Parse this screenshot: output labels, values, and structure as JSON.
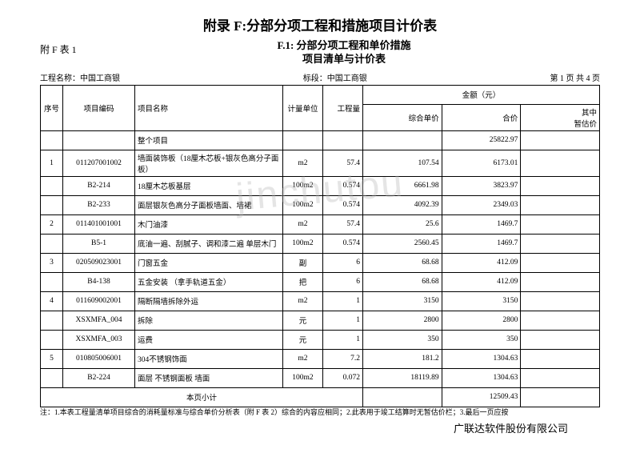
{
  "main_title": "附录 F:分部分项工程和措施项目计价表",
  "table_id": "附 F 表 1",
  "sub_title_line1": "F.1: 分部分项工程和单价措施",
  "sub_title_line2": "项目清单与计价表",
  "meta": {
    "project_label": "工程名称：中国工商银",
    "section_label": "标段：中国工商银",
    "page_label": "第  1 页 共  4 页"
  },
  "headers": {
    "seq": "序号",
    "code": "项目编码",
    "name": "项目名称",
    "unit": "计量单位",
    "qty": "工程量",
    "amount_group": "金额（元）",
    "unit_price": "综合单价",
    "total": "合价",
    "temp": "其中\n暂估价"
  },
  "rows": [
    {
      "seq": "",
      "code": "",
      "name": "整个项目",
      "unit": "",
      "qty": "",
      "price": "",
      "total": "25822.97",
      "temp": ""
    },
    {
      "seq": "1",
      "code": "011207001002",
      "name": "墙面装饰板（18厘木芯板+银灰色高分子面板）",
      "unit": "m2",
      "qty": "57.4",
      "price": "107.54",
      "total": "6173.01",
      "temp": ""
    },
    {
      "seq": "",
      "code": "B2-214",
      "name": "18厘木芯板基层",
      "unit": "100m2",
      "qty": "0.574",
      "price": "6661.98",
      "total": "3823.97",
      "temp": ""
    },
    {
      "seq": "",
      "code": "B2-233",
      "name": "面层银灰色高分子面板墙面、墙裙",
      "unit": "100m2",
      "qty": "0.574",
      "price": "4092.39",
      "total": "2349.03",
      "temp": ""
    },
    {
      "seq": "2",
      "code": "011401001001",
      "name": "木门油漆",
      "unit": "m2",
      "qty": "57.4",
      "price": "25.6",
      "total": "1469.7",
      "temp": ""
    },
    {
      "seq": "",
      "code": "B5-1",
      "name": "底油一遍、刮腻子、调和漆二遍 单层木门",
      "unit": "100m2",
      "qty": "0.574",
      "price": "2560.45",
      "total": "1469.7",
      "temp": ""
    },
    {
      "seq": "3",
      "code": "020509023001",
      "name": "门窗五金",
      "unit": "副",
      "qty": "6",
      "price": "68.68",
      "total": "412.09",
      "temp": ""
    },
    {
      "seq": "",
      "code": "B4-138",
      "name": "五金安装 （拿手轨道五金）",
      "unit": "把",
      "qty": "6",
      "price": "68.68",
      "total": "412.09",
      "temp": ""
    },
    {
      "seq": "4",
      "code": "011609002001",
      "name": "隔断隔墙拆除外运",
      "unit": "m2",
      "qty": "1",
      "price": "3150",
      "total": "3150",
      "temp": ""
    },
    {
      "seq": "",
      "code": "XSXMFA_004",
      "name": "拆除",
      "unit": "元",
      "qty": "1",
      "price": "2800",
      "total": "2800",
      "temp": ""
    },
    {
      "seq": "",
      "code": "XSXMFA_003",
      "name": "运费",
      "unit": "元",
      "qty": "1",
      "price": "350",
      "total": "350",
      "temp": ""
    },
    {
      "seq": "5",
      "code": "010805006001",
      "name": "304不锈钢饰面",
      "unit": "m2",
      "qty": "7.2",
      "price": "181.2",
      "total": "1304.63",
      "temp": ""
    },
    {
      "seq": "",
      "code": "B2-224",
      "name": "面层 不锈钢面板 墙面",
      "unit": "100m2",
      "qty": "0.072",
      "price": "18119.89",
      "total": "1304.63",
      "temp": ""
    },
    {
      "seq": "",
      "code": "",
      "name": "本页小计",
      "unit": "",
      "qty": "",
      "price": "",
      "total": "12509.43",
      "temp": "",
      "subtotal": true
    }
  ],
  "footnote": "注：1.本表工程量清单项目综合的消耗量标准与综合单价分析表（附 F 表 2）综合的内容应相同；2.此表用于竣工结算时无暂估价栏；3.最后一页应按",
  "company": "广联达软件股份有限公司",
  "watermark": "jinchutou"
}
